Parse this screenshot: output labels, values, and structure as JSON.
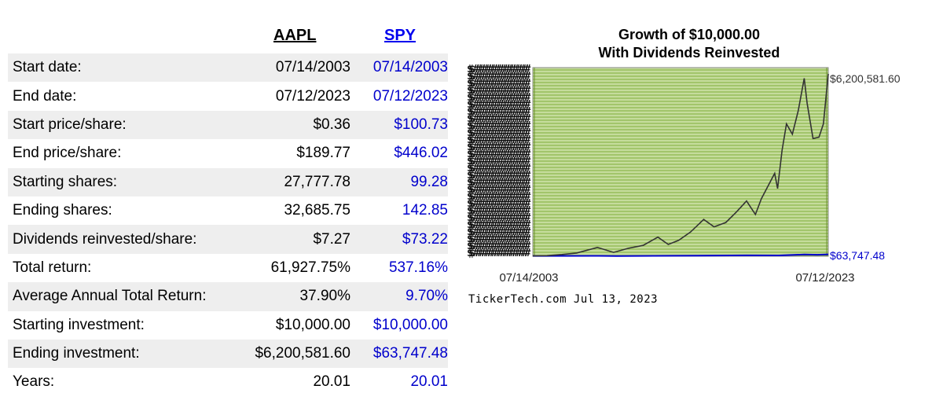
{
  "table": {
    "tickers": {
      "a": "AAPL",
      "b": "SPY"
    },
    "rows": [
      {
        "label": "Start date:",
        "a": "07/14/2003",
        "b": "07/14/2003"
      },
      {
        "label": "End date:",
        "a": "07/12/2023",
        "b": "07/12/2023"
      },
      {
        "label": "Start price/share:",
        "a": "$0.36",
        "b": "$100.73"
      },
      {
        "label": "End price/share:",
        "a": "$189.77",
        "b": "$446.02"
      },
      {
        "label": "Starting shares:",
        "a": "27,777.78",
        "b": "99.28"
      },
      {
        "label": "Ending shares:",
        "a": "32,685.75",
        "b": "142.85"
      },
      {
        "label": "Dividends reinvested/share:",
        "a": "$7.27",
        "b": "$73.22"
      },
      {
        "label": "Total return:",
        "a": "61,927.75%",
        "b": "537.16%"
      },
      {
        "label": "Average Annual Total Return:",
        "a": "37.90%",
        "b": "9.70%"
      },
      {
        "label": "Starting investment:",
        "a": "$10,000.00",
        "b": "$10,000.00"
      },
      {
        "label": "Ending investment:",
        "a": "$6,200,581.60",
        "b": "$63,747.48"
      },
      {
        "label": "Years:",
        "a": "20.01",
        "b": "20.01"
      }
    ]
  },
  "chart_data": {
    "type": "line",
    "title": "Growth of $10,000.00",
    "subtitle": "With Dividends Reinvested",
    "x_start_label": "07/14/2003",
    "x_end_label": "07/12/2023",
    "x_range": [
      2003.53,
      2023.53
    ],
    "ylim": [
      0,
      6200581.6
    ],
    "series": [
      {
        "name": "AAPL",
        "color": "#333333",
        "end_label": "$6,200,581.60",
        "x": [
          2003.53,
          2004.5,
          2005.5,
          2006.5,
          2007.9,
          2009.0,
          2010.0,
          2011.0,
          2012.0,
          2012.7,
          2013.4,
          2014.2,
          2015.1,
          2015.8,
          2016.6,
          2017.3,
          2018.0,
          2018.6,
          2019.0,
          2019.9,
          2020.1,
          2020.4,
          2020.7,
          2021.1,
          2021.5,
          2021.9,
          2022.1,
          2022.5,
          2022.9,
          2023.2,
          2023.53
        ],
        "values": [
          10000,
          22000,
          60000,
          110000,
          300000,
          130000,
          270000,
          370000,
          650000,
          400000,
          540000,
          820000,
          1250000,
          1000000,
          1150000,
          1500000,
          1880000,
          1420000,
          1950000,
          2820000,
          2300000,
          3600000,
          4500000,
          4150000,
          4950000,
          6050000,
          5200000,
          4000000,
          4050000,
          4500000,
          6200581.6
        ]
      },
      {
        "name": "SPY",
        "color": "#0000cc",
        "end_label": "$63,747.48",
        "x": [
          2003.53,
          2007.8,
          2009.2,
          2013.0,
          2018.0,
          2020.2,
          2021.9,
          2022.8,
          2023.53
        ],
        "values": [
          10000,
          14000,
          7000,
          16000,
          30000,
          28000,
          60000,
          52000,
          63747.48
        ]
      }
    ],
    "y_tick_glyph": "$#########"
  },
  "credit": "TickerTech.com  Jul 13, 2023"
}
